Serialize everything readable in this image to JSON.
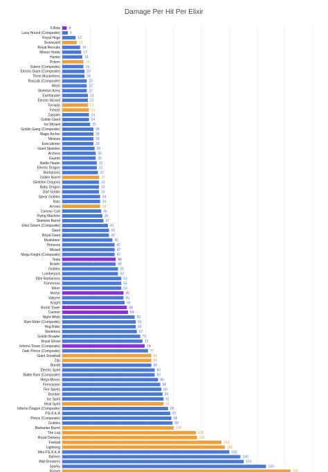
{
  "colors": {
    "blue": "#4a78d6",
    "orange": "#f0a03a",
    "purple": "#8a2fd8",
    "grid": "#e6e6e6",
    "text": "#222222"
  },
  "chart_data": {
    "type": "bar",
    "orientation": "horizontal",
    "title": "Damage Per Hit Per Elixir",
    "xlabel": "",
    "ylabel": "",
    "xlim": [
      0,
      225
    ],
    "xticks": [
      0,
      25,
      50,
      75,
      100,
      125,
      150,
      175,
      200,
      225
    ],
    "grid": true,
    "legend": "none",
    "categories": [
      "X-Bow",
      "Lava Hound (Composite)",
      "Royal Hogs",
      "Graveyard",
      "Royal Recruits",
      "Minion Horde",
      "Hunter",
      "Poison",
      "Golem (Composite)",
      "Electro Giant (Composite)",
      "Three Musketeers",
      "Rascals (Composite)",
      "Witch",
      "Skeleton Army",
      "Earthquake",
      "Electro Wizard",
      "Tornado",
      "Freeze",
      "Zappies",
      "Goblin Giant",
      "Ice Wizard",
      "Goblin Gang (Composite)",
      "Magic Archer",
      "Minions",
      "Executioner",
      "Giant Skeleton",
      "Archers",
      "Guards",
      "Battle Healer",
      "Electro Dragon",
      "Barbarians",
      "Goblin Barrel",
      "Skeleton Dragons",
      "Baby Dragon",
      "Dart Goblin",
      "Spear Goblins",
      "Bats",
      "Arrows",
      "Cannon Cart",
      "Flying Machine",
      "Skeleton Barrel",
      "Elixir Golem (Composite)",
      "Giant",
      "Royal Giant",
      "Musketeer",
      "Princess",
      "Wizard",
      "Mega Knight (Composite)",
      "Tesla",
      "Bowler",
      "Goblins",
      "Lumberjack",
      "Elite Barbarians",
      "Fisherman",
      "Miner",
      "Mortar",
      "Valkyrie",
      "Knight",
      "Bomb Tower",
      "Cannon",
      "Night Witch",
      "Ram Rider (Composite)",
      "Hog Rider",
      "Skeletons",
      "Goblin Brawler",
      "Royal Ghost",
      "Inferno Tower (Composite)",
      "Dark Prince (Composite)",
      "Giant Snowball",
      "Zap",
      "Bandit",
      "Electro Spirit",
      "Battle Ram (Composite)",
      "Mega Minion",
      "Firecracker",
      "Fire Spirits",
      "Bomber",
      "Ice Spirit",
      "Heal Spirit",
      "Inferno Dragon (Composite)",
      "P.E.K.K.A",
      "Prince (Composite)",
      "Goblins",
      "Barbarian Barrel",
      "The Log",
      "Royal Delivery",
      "Fireball",
      "Lightning",
      "Mini P.E.K.K.A",
      "Balloon",
      "Wall Breakers",
      "Sparky",
      "Rocket"
    ],
    "values": [
      4,
      5,
      12,
      13,
      16,
      17,
      18,
      19,
      19,
      20,
      20,
      22,
      22,
      22,
      23,
      23,
      23,
      24,
      24,
      24,
      25,
      28,
      28,
      28,
      28,
      29,
      30,
      30,
      31,
      31,
      32,
      33,
      33,
      33,
      33,
      34,
      34,
      34,
      35,
      36,
      37,
      41,
      42,
      42,
      45,
      47,
      47,
      47,
      48,
      48,
      50,
      50,
      53,
      53,
      53,
      55,
      55,
      56,
      58,
      59,
      65,
      66,
      66,
      67,
      70,
      72,
      74,
      77,
      80,
      80,
      80,
      83,
      83,
      86,
      88,
      89,
      90,
      91,
      91,
      95,
      97,
      98,
      99,
      100,
      120,
      121,
      143,
      146,
      150,
      160,
      163,
      183,
      205
    ],
    "colors": [
      "purple",
      "blue",
      "blue",
      "orange",
      "blue",
      "blue",
      "blue",
      "orange",
      "blue",
      "blue",
      "blue",
      "blue",
      "blue",
      "blue",
      "blue",
      "blue",
      "orange",
      "orange",
      "blue",
      "blue",
      "blue",
      "blue",
      "blue",
      "blue",
      "blue",
      "blue",
      "blue",
      "blue",
      "blue",
      "blue",
      "blue",
      "orange",
      "blue",
      "blue",
      "blue",
      "blue",
      "blue",
      "orange",
      "blue",
      "blue",
      "blue",
      "blue",
      "blue",
      "blue",
      "blue",
      "blue",
      "blue",
      "blue",
      "purple",
      "blue",
      "blue",
      "blue",
      "blue",
      "blue",
      "blue",
      "purple",
      "blue",
      "blue",
      "purple",
      "purple",
      "blue",
      "blue",
      "blue",
      "blue",
      "blue",
      "blue",
      "purple",
      "blue",
      "orange",
      "orange",
      "blue",
      "blue",
      "blue",
      "blue",
      "blue",
      "blue",
      "blue",
      "blue",
      "orange",
      "blue",
      "blue",
      "blue",
      "blue",
      "orange",
      "orange",
      "orange",
      "orange",
      "orange",
      "blue",
      "blue",
      "blue",
      "blue",
      "orange"
    ]
  }
}
